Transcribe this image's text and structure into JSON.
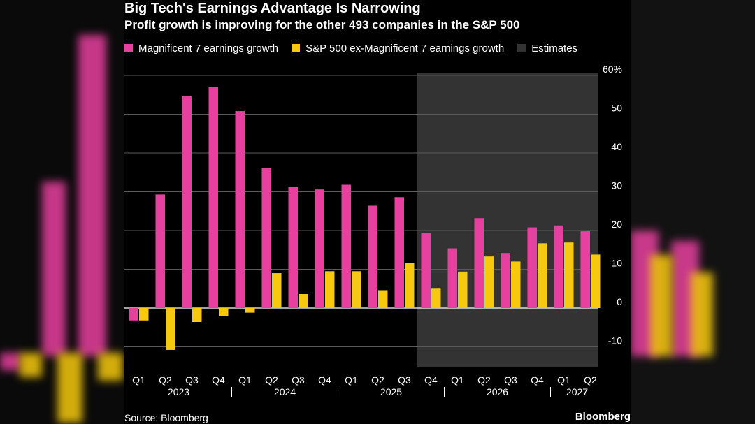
{
  "chart_data": {
    "type": "bar",
    "title": "Big Tech's Earnings Advantage Is Narrowing",
    "subtitle": "Profit growth is improving for the other 493 companies in the S&P 500",
    "categories": [
      "Q1",
      "Q2",
      "Q3",
      "Q4",
      "Q1",
      "Q2",
      "Q3",
      "Q4",
      "Q1",
      "Q2",
      "Q3",
      "Q4",
      "Q1",
      "Q2",
      "Q3",
      "Q4",
      "Q1",
      "Q2"
    ],
    "years": [
      {
        "label": "2023",
        "start": 0,
        "end": 3
      },
      {
        "label": "2024",
        "start": 4,
        "end": 7
      },
      {
        "label": "2025",
        "start": 8,
        "end": 11
      },
      {
        "label": "2026",
        "start": 12,
        "end": 15
      },
      {
        "label": "2027",
        "start": 16,
        "end": 17
      }
    ],
    "series": [
      {
        "name": "Magnificent 7 earnings growth",
        "color": "#e8409f",
        "values": [
          -3.2,
          29.3,
          54.6,
          57.0,
          50.8,
          36.1,
          31.2,
          30.6,
          31.8,
          26.4,
          28.6,
          19.4,
          15.4,
          23.2,
          14.2,
          20.8,
          21.3,
          19.8
        ]
      },
      {
        "name": "S&P 500 ex-Magnificent 7 earnings growth",
        "color": "#f6c90e",
        "values": [
          -3.2,
          -10.8,
          -3.6,
          -2.0,
          -1.2,
          9.0,
          3.6,
          9.5,
          9.5,
          4.6,
          11.7,
          5.0,
          9.4,
          13.3,
          12.0,
          16.7,
          16.9,
          13.8
        ]
      }
    ],
    "estimates": {
      "name": "Estimates",
      "color": "#333333",
      "from_index": 11
    },
    "ylim": [
      -15,
      62
    ],
    "yticks": [
      -10,
      0,
      10,
      20,
      30,
      40,
      50,
      60
    ],
    "ytick_labels": [
      "-10",
      "0",
      "10",
      "20",
      "30",
      "40",
      "50",
      "60%"
    ],
    "grid": true,
    "legend_position": "top-left"
  },
  "footer": {
    "source": "Source: Bloomberg",
    "brand": "Bloomberg"
  }
}
